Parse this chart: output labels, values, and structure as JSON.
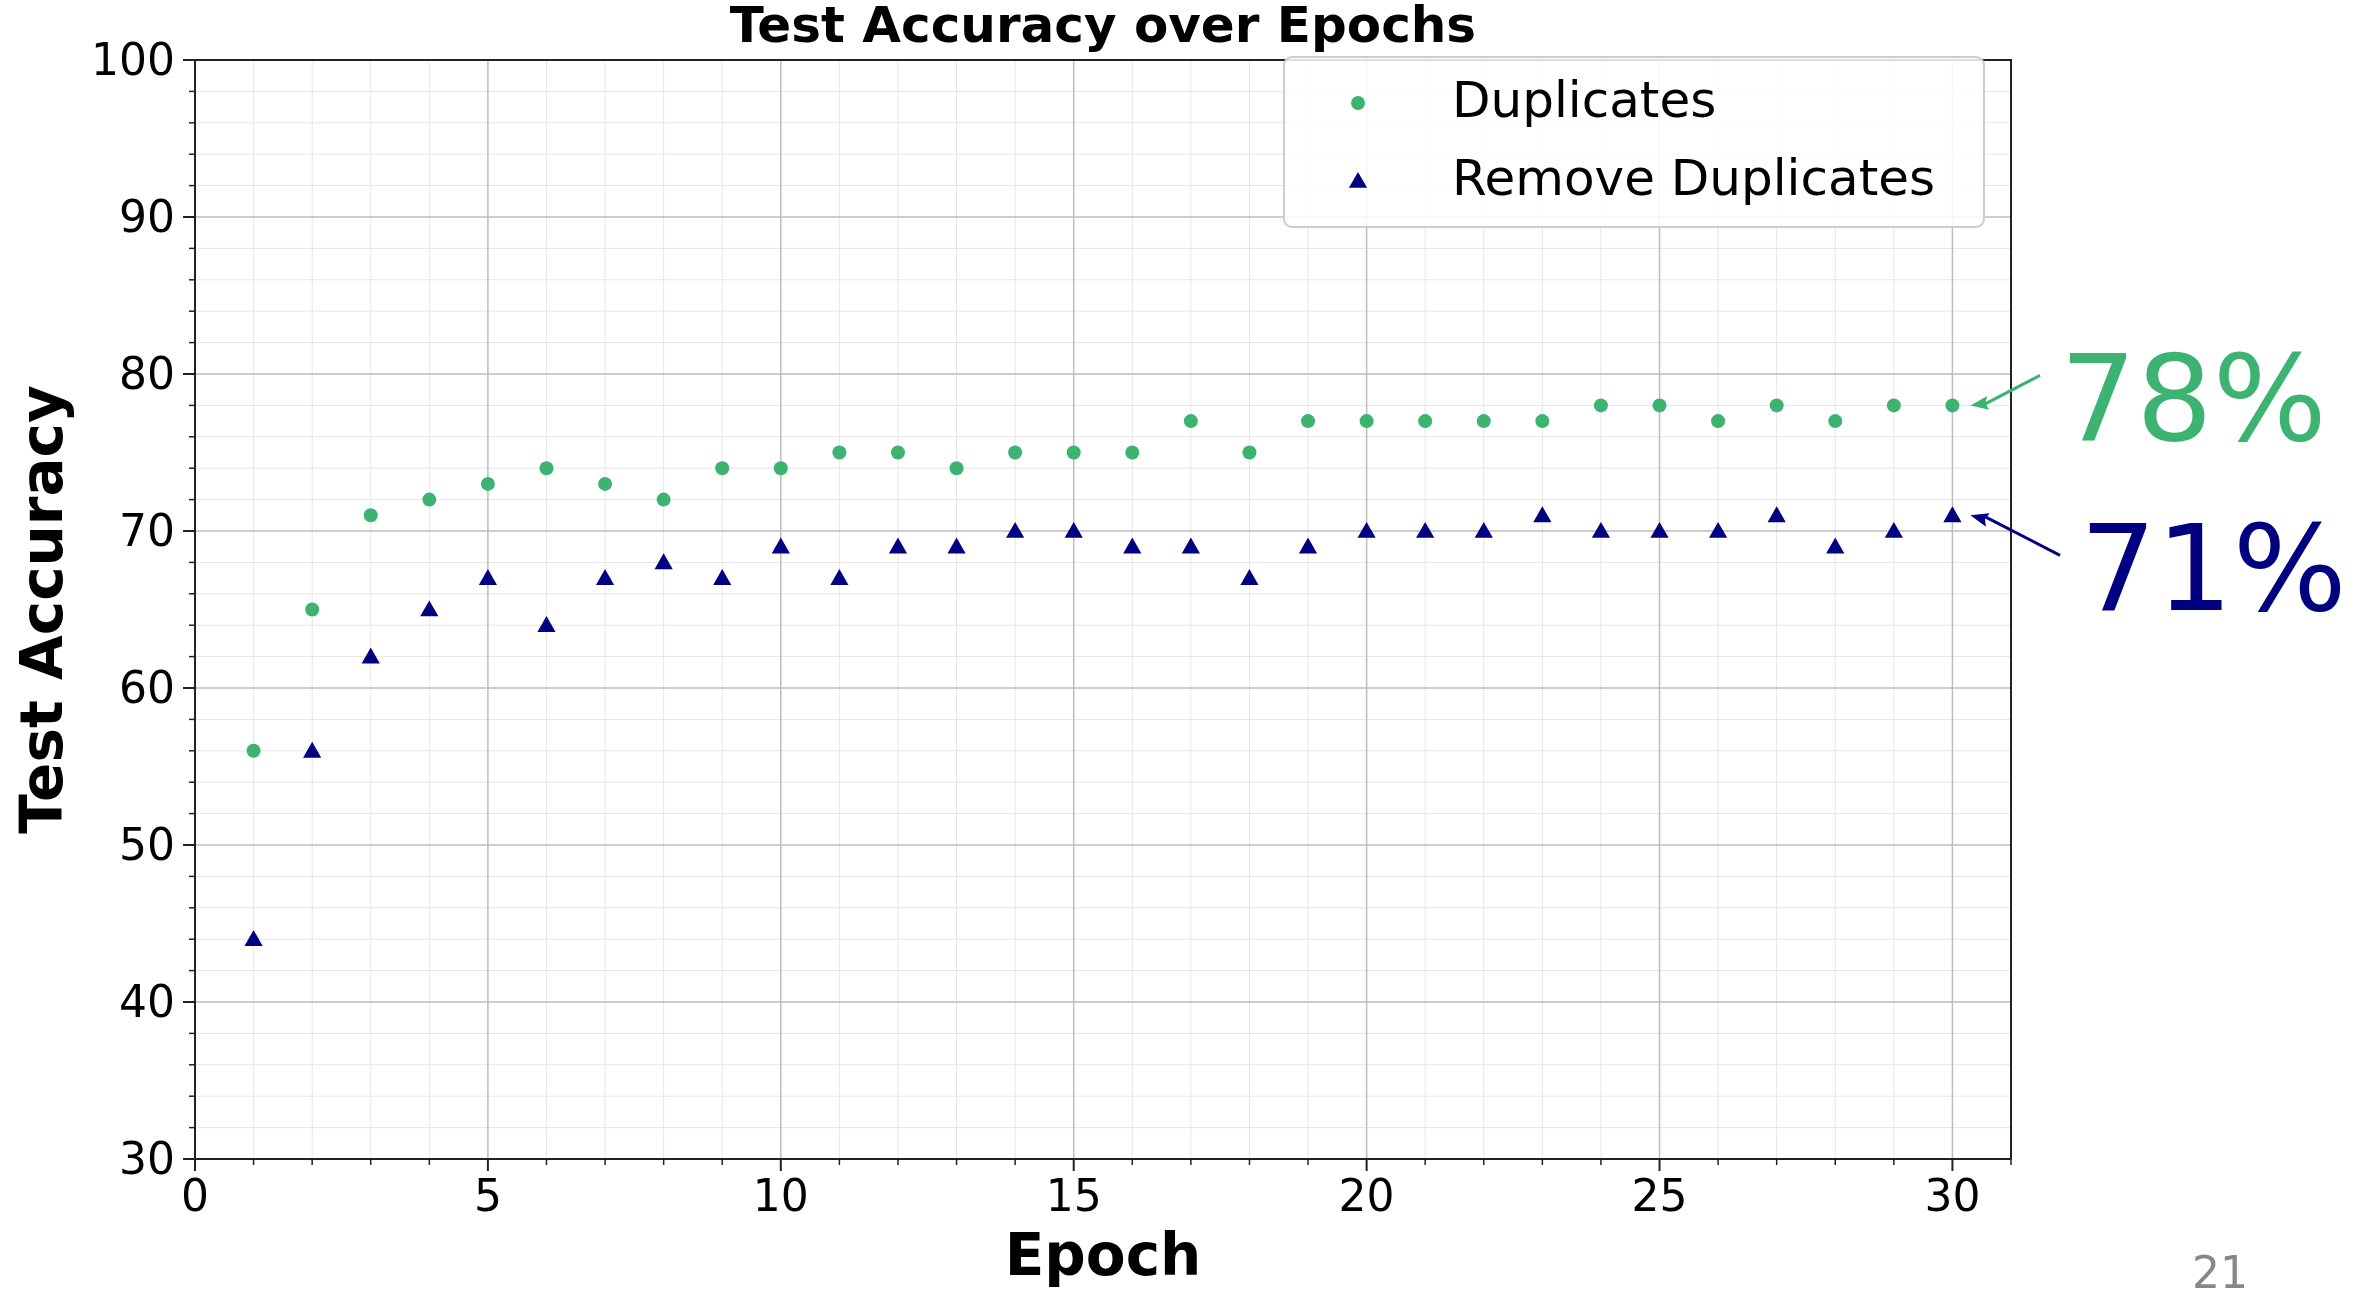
{
  "chart_data": {
    "type": "scatter",
    "title": "Test Accuracy over Epochs",
    "xlabel": "Epoch",
    "ylabel": "Test Accuracy",
    "x": [
      1,
      2,
      3,
      4,
      5,
      6,
      7,
      8,
      9,
      10,
      11,
      12,
      13,
      14,
      15,
      16,
      17,
      18,
      19,
      20,
      21,
      22,
      23,
      24,
      25,
      26,
      27,
      28,
      29,
      30
    ],
    "series": [
      {
        "name": "Duplicates",
        "color": "#3cb371",
        "marker": "circle",
        "values": [
          56,
          65,
          71,
          72,
          73,
          74,
          73,
          72,
          74,
          74,
          75,
          75,
          74,
          75,
          75,
          75,
          77,
          75,
          77,
          77,
          77,
          77,
          77,
          78,
          78,
          77,
          78,
          77,
          78,
          78
        ]
      },
      {
        "name": "Remove Duplicates",
        "color": "#000080",
        "marker": "triangle",
        "values": [
          44,
          56,
          62,
          65,
          67,
          64,
          67,
          68,
          67,
          69,
          67,
          69,
          69,
          70,
          70,
          69,
          69,
          67,
          69,
          70,
          70,
          70,
          71,
          70,
          70,
          70,
          71,
          69,
          70,
          71
        ]
      }
    ],
    "xlim": [
      0,
      31
    ],
    "ylim": [
      30,
      100
    ],
    "xticks": [
      0,
      5,
      10,
      15,
      20,
      25,
      30
    ],
    "yticks": [
      30,
      40,
      50,
      60,
      70,
      80,
      90,
      100
    ],
    "grid": true,
    "legend": "top right",
    "annotations": [
      {
        "text": "78%",
        "x": 30,
        "y": 78
      },
      {
        "text": "71%",
        "x": 30,
        "y": 71
      },
      "21"
    ]
  }
}
